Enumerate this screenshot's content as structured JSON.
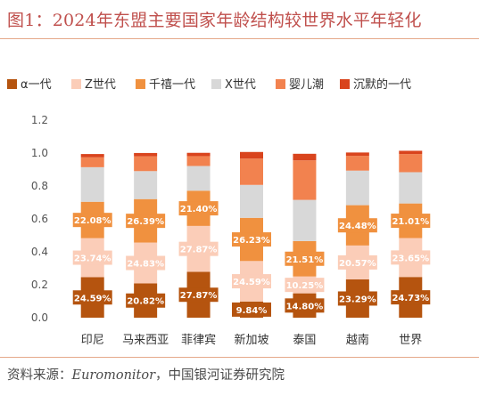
{
  "title": "图1：2024年东盟主要国家年龄结构较世界水平年轻化",
  "source": {
    "prefix": "资料来源：",
    "name_en": "Euromonitor",
    "name_cn": "，中国银河证券研究院"
  },
  "chart_data": {
    "type": "bar",
    "stacked": true,
    "categories": [
      "印尼",
      "马来西亚",
      "菲律宾",
      "新加坡",
      "泰国",
      "越南",
      "世界"
    ],
    "ylim": [
      0,
      1.2
    ],
    "yticks": [
      "0.0",
      "0.2",
      "0.4",
      "0.6",
      "0.8",
      "1.0",
      "1.2"
    ],
    "legend_position": "top",
    "grid": false,
    "series": [
      {
        "name": "α一代",
        "color": "#b5540f",
        "label_color": "#ffffff",
        "values": [
          0.2459,
          0.2082,
          0.2787,
          0.0984,
          0.148,
          0.2329,
          0.2473
        ],
        "labels": [
          "24.59%",
          "20.82%",
          "27.87%",
          "9.84%",
          "14.80%",
          "23.29%",
          "24.73%"
        ]
      },
      {
        "name": "Z世代",
        "color": "#fbcdb8",
        "label_color": "#ffffff",
        "values": [
          0.2374,
          0.2483,
          0.2787,
          0.2459,
          0.1025,
          0.2057,
          0.2365
        ],
        "labels": [
          "23.74%",
          "24.83%",
          "27.87%",
          "24.59%",
          "10.25%",
          "20.57%",
          "23.65%"
        ]
      },
      {
        "name": "千禧一代",
        "color": "#f0913f",
        "label_color": "#ffffff",
        "values": [
          0.2208,
          0.2639,
          0.214,
          0.2623,
          0.2151,
          0.2448,
          0.2101
        ],
        "labels": [
          "22.08%",
          "26.39%",
          "21.40%",
          "26.23%",
          "21.51%",
          "24.48%",
          "21.01%"
        ]
      },
      {
        "name": "X世代",
        "color": "#d8d8d8",
        "label_color": "#ffffff",
        "values": [
          0.21,
          0.17,
          0.15,
          0.2,
          0.25,
          0.21,
          0.19
        ],
        "labels": []
      },
      {
        "name": "婴儿潮",
        "color": "#f2824f",
        "label_color": "#ffffff",
        "values": [
          0.06,
          0.09,
          0.06,
          0.16,
          0.24,
          0.09,
          0.11
        ],
        "labels": []
      },
      {
        "name": "沉默的一代",
        "color": "#d9441d",
        "label_color": "#ffffff",
        "values": [
          0.02,
          0.02,
          0.02,
          0.04,
          0.04,
          0.02,
          0.02
        ],
        "labels": []
      }
    ]
  }
}
